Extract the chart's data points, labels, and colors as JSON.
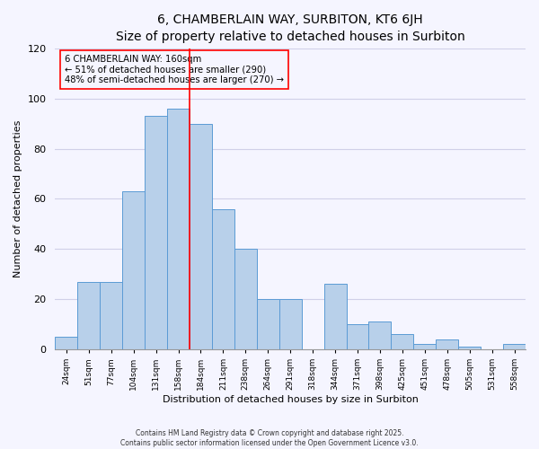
{
  "title": "6, CHAMBERLAIN WAY, SURBITON, KT6 6JH",
  "subtitle": "Size of property relative to detached houses in Surbiton",
  "xlabel": "Distribution of detached houses by size in Surbiton",
  "ylabel": "Number of detached properties",
  "categories": [
    "24sqm",
    "51sqm",
    "77sqm",
    "104sqm",
    "131sqm",
    "158sqm",
    "184sqm",
    "211sqm",
    "238sqm",
    "264sqm",
    "291sqm",
    "318sqm",
    "344sqm",
    "371sqm",
    "398sqm",
    "425sqm",
    "451sqm",
    "478sqm",
    "505sqm",
    "531sqm",
    "558sqm"
  ],
  "values": [
    5,
    27,
    27,
    63,
    93,
    96,
    90,
    56,
    40,
    20,
    20,
    0,
    26,
    10,
    11,
    6,
    2,
    4,
    1,
    0,
    2
  ],
  "bar_color": "#b8d0ea",
  "bar_edge_color": "#5b9bd5",
  "vline_x_idx": 5,
  "vline_color": "red",
  "annotation_text": "6 CHAMBERLAIN WAY: 160sqm\n← 51% of detached houses are smaller (290)\n48% of semi-detached houses are larger (270) →",
  "annotation_box_edge": "red",
  "ylim": [
    0,
    120
  ],
  "footer1": "Contains HM Land Registry data © Crown copyright and database right 2025.",
  "footer2": "Contains public sector information licensed under the Open Government Licence v3.0.",
  "bg_color": "#f5f5ff",
  "grid_color": "#d0d0e8",
  "title_fontsize": 10,
  "subtitle_fontsize": 9
}
